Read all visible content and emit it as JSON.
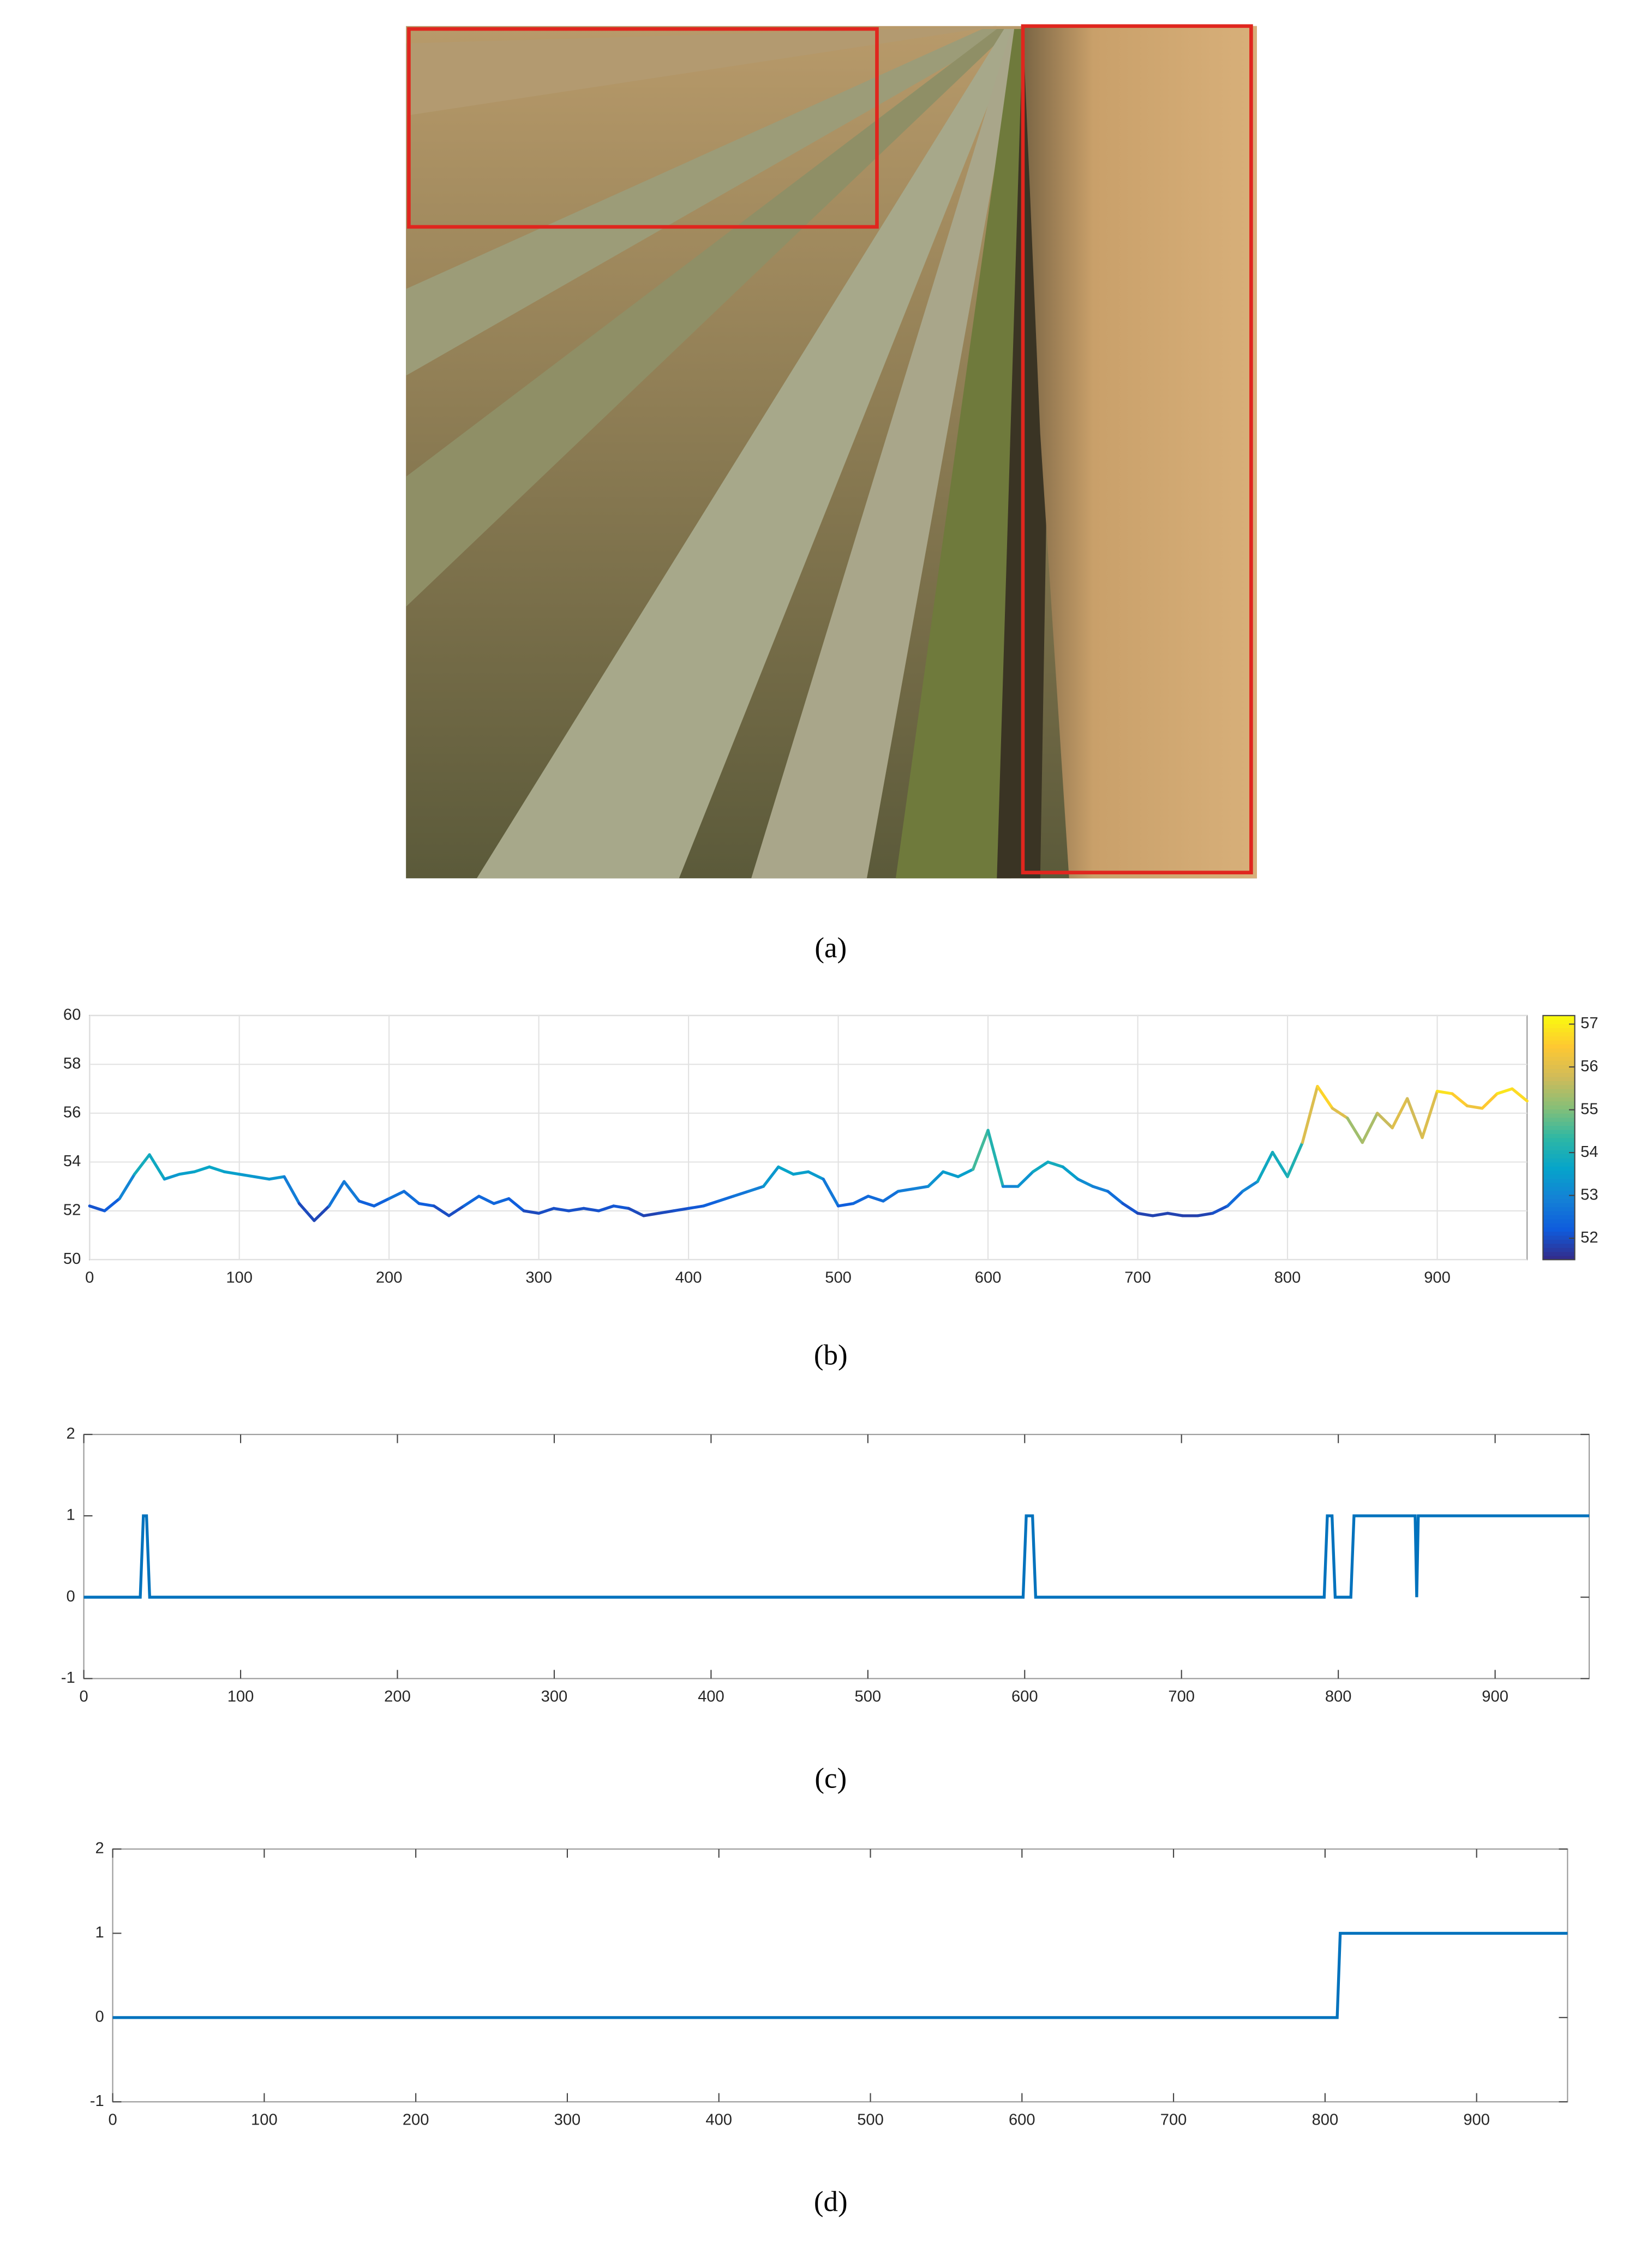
{
  "labels": [
    "(a)",
    "(b)",
    "(c)",
    "(d)"
  ],
  "chart_data": [
    {
      "type": "line",
      "x": [
        0,
        10,
        20,
        30,
        40,
        50,
        60,
        70,
        80,
        90,
        100,
        110,
        120,
        130,
        140,
        150,
        160,
        170,
        180,
        190,
        200,
        210,
        220,
        230,
        240,
        250,
        260,
        270,
        280,
        290,
        300,
        310,
        320,
        330,
        340,
        350,
        360,
        370,
        380,
        390,
        400,
        410,
        420,
        430,
        440,
        450,
        460,
        470,
        480,
        490,
        500,
        510,
        520,
        530,
        540,
        550,
        560,
        570,
        580,
        590,
        600,
        610,
        620,
        630,
        640,
        650,
        660,
        670,
        680,
        690,
        700,
        710,
        720,
        730,
        740,
        750,
        760,
        770,
        780,
        790,
        800,
        810,
        820,
        830,
        840,
        850,
        860,
        870,
        880,
        890,
        900,
        910,
        920,
        930,
        940,
        950,
        960
      ],
      "values": [
        52.2,
        52.0,
        52.5,
        53.5,
        54.3,
        53.3,
        53.5,
        53.6,
        53.8,
        53.6,
        53.5,
        53.4,
        53.3,
        53.4,
        52.3,
        51.6,
        52.2,
        53.2,
        52.4,
        52.2,
        52.5,
        52.8,
        52.3,
        52.2,
        51.8,
        52.2,
        52.6,
        52.3,
        52.5,
        52.0,
        51.9,
        52.1,
        52.0,
        52.1,
        52.0,
        52.2,
        52.1,
        51.8,
        51.9,
        52.0,
        52.1,
        52.2,
        52.4,
        52.6,
        52.8,
        53.0,
        53.8,
        53.5,
        53.6,
        53.3,
        52.2,
        52.3,
        52.6,
        52.4,
        52.8,
        52.9,
        53.0,
        53.6,
        53.4,
        53.7,
        55.3,
        53.0,
        53.0,
        53.6,
        54.0,
        53.8,
        53.3,
        53.0,
        52.8,
        52.3,
        51.9,
        51.8,
        51.9,
        51.8,
        51.8,
        51.9,
        52.2,
        52.8,
        53.2,
        54.4,
        53.4,
        54.8,
        57.1,
        56.2,
        55.8,
        54.8,
        56.0,
        55.4,
        56.6,
        55.0,
        56.9,
        56.8,
        56.3,
        56.2,
        56.8,
        57.0,
        56.5
      ],
      "xlim": [
        0,
        960
      ],
      "ylim": [
        50,
        60
      ],
      "xticks": [
        0,
        100,
        200,
        300,
        400,
        500,
        600,
        700,
        800,
        900
      ],
      "yticks": [
        50,
        52,
        54,
        56,
        58,
        60
      ],
      "grid": true,
      "colormap": [
        "#352a87",
        "#0f5cdd",
        "#1481d6",
        "#06a4ca",
        "#2eb7a4",
        "#87bf77",
        "#d1bb59",
        "#fec832",
        "#f9fb0e"
      ],
      "clim": [
        51.5,
        57.2
      ],
      "colorbar_ticks": [
        52,
        53,
        54,
        55,
        56,
        57
      ]
    },
    {
      "type": "line",
      "x": [
        0,
        36,
        38,
        40,
        42,
        599,
        601,
        605,
        607,
        791,
        793,
        796,
        798,
        808,
        810,
        849,
        850,
        851,
        960
      ],
      "values": [
        0,
        0,
        1,
        1,
        0,
        0,
        1,
        1,
        0,
        0,
        1,
        1,
        0,
        0,
        1,
        1,
        0,
        1,
        1
      ],
      "xlim": [
        0,
        960
      ],
      "ylim": [
        -1,
        2
      ],
      "xticks": [
        0,
        100,
        200,
        300,
        400,
        500,
        600,
        700,
        800,
        900
      ],
      "yticks": [
        -1,
        0,
        1,
        2
      ],
      "grid": false,
      "color": "#0072bd"
    },
    {
      "type": "line",
      "x": [
        0,
        808,
        810,
        960
      ],
      "values": [
        0,
        0,
        1,
        1
      ],
      "xlim": [
        0,
        960
      ],
      "ylim": [
        -1,
        2
      ],
      "xticks": [
        0,
        100,
        200,
        300,
        400,
        500,
        600,
        700,
        800,
        900
      ],
      "yticks": [
        -1,
        0,
        1,
        2
      ],
      "grid": false,
      "color": "#0072bd"
    }
  ]
}
